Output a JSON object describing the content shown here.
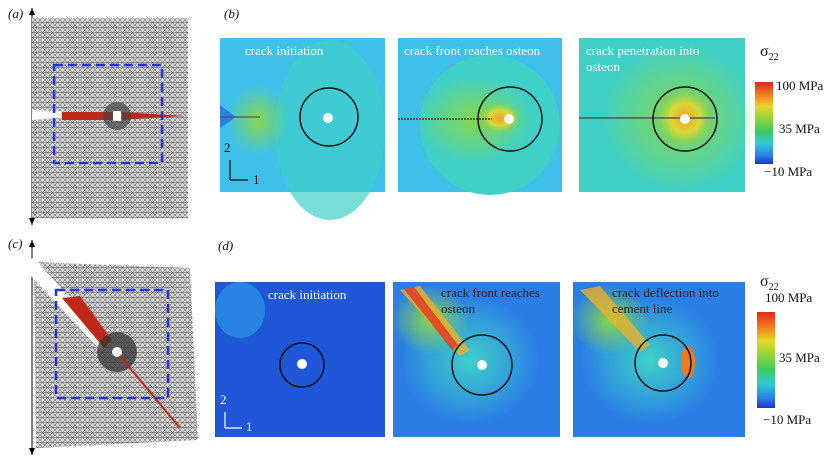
{
  "top": {
    "mesh_label": "(a)",
    "plots_label": "(b)",
    "plots": [
      {
        "caption": [
          "crack initiation"
        ]
      },
      {
        "caption": [
          "crack front reaches osteon"
        ]
      },
      {
        "caption": [
          "crack penetration into",
          "osteon"
        ]
      }
    ],
    "axes": {
      "y": "2",
      "x": "1"
    },
    "colorbar": {
      "symbol": "σ",
      "subscript": "22",
      "ticks": [
        "100 MPa",
        "35 MPa",
        "−10 MPa"
      ]
    }
  },
  "bottom": {
    "mesh_label": "(c)",
    "plots_label": "(d)",
    "plots": [
      {
        "caption": [
          "crack initiation"
        ]
      },
      {
        "caption": [
          "crack front reaches",
          "osteon"
        ]
      },
      {
        "caption": [
          "crack deflection into",
          "cement line"
        ]
      }
    ],
    "axes": {
      "y": "2",
      "x": "1"
    },
    "colorbar": {
      "symbol": "σ",
      "subscript": "22",
      "ticks": [
        "100 MPa",
        "35 MPa",
        "−10 MPa"
      ]
    }
  }
}
